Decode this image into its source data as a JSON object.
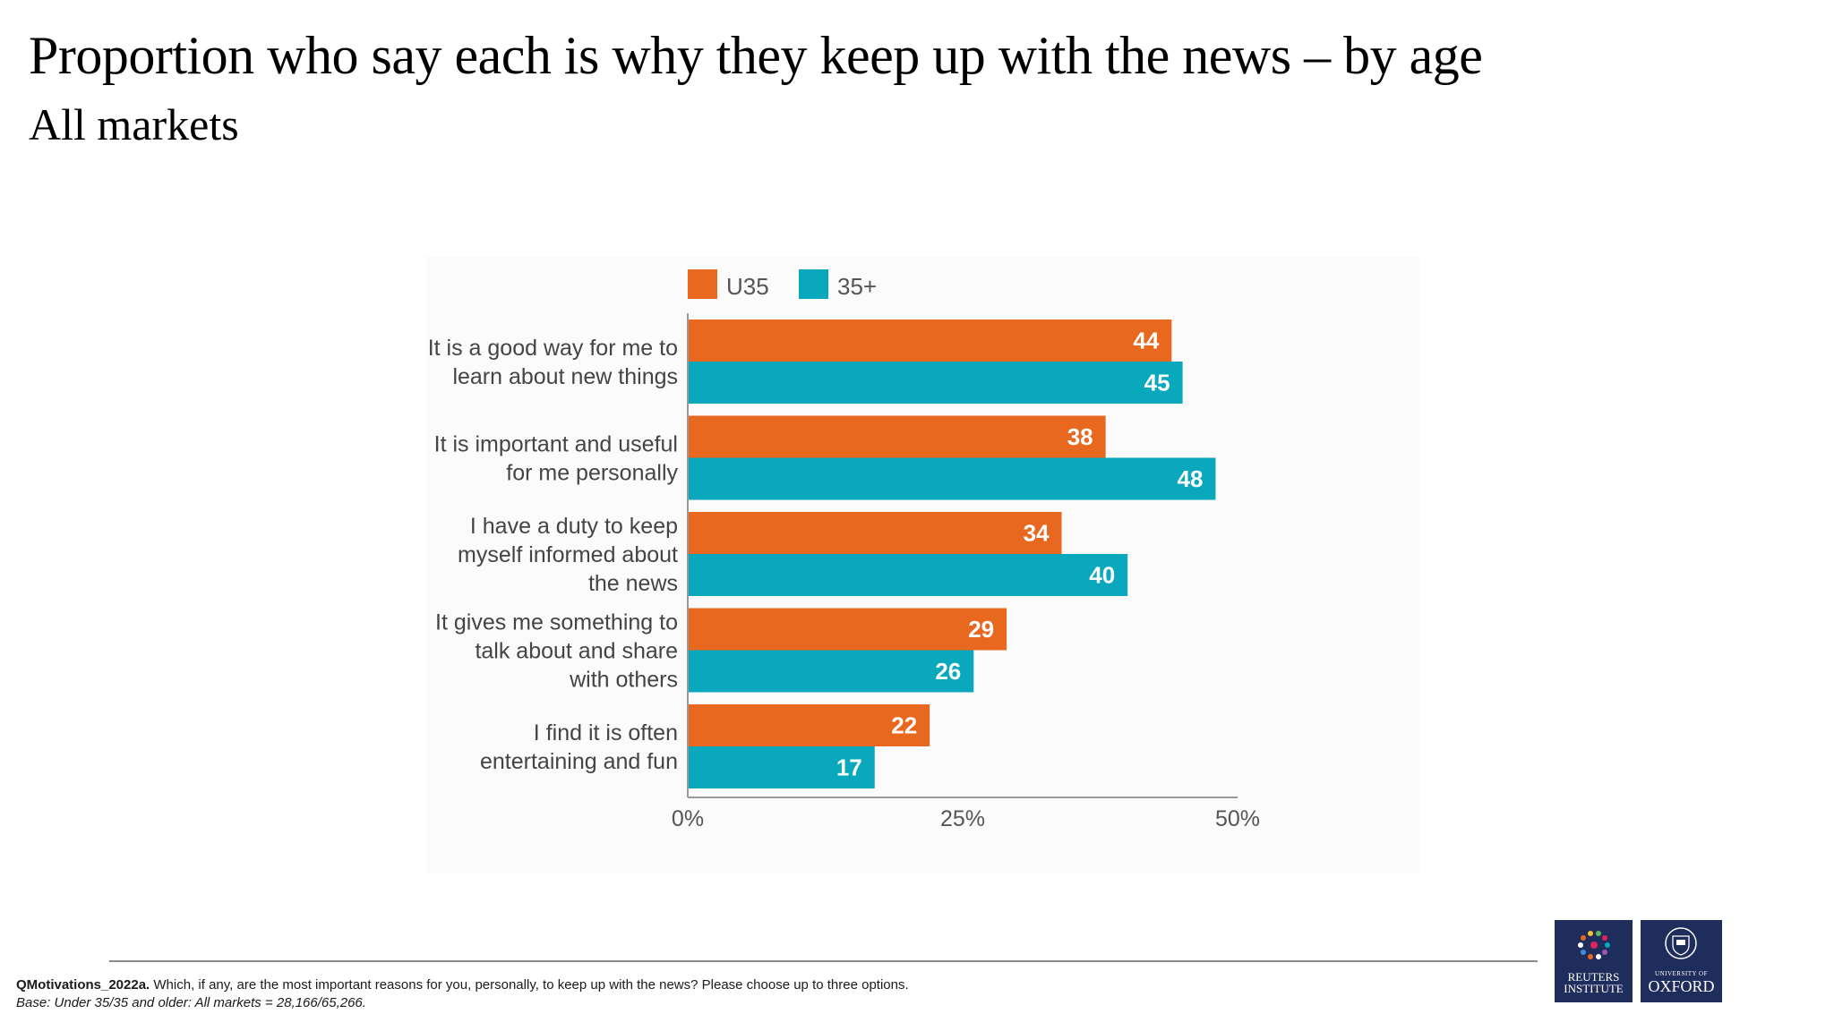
{
  "header": {
    "title": "Proportion who say each is why they keep up with the news – by age",
    "subtitle": "All markets"
  },
  "chart_data": {
    "type": "bar",
    "orientation": "horizontal",
    "categories": [
      [
        "It is a good way for me to",
        "learn about new things"
      ],
      [
        "It is important and useful",
        "for me personally"
      ],
      [
        "I have a duty to keep",
        "myself informed about",
        "the news"
      ],
      [
        "It gives me something to",
        "talk about and share",
        "with others"
      ],
      [
        "I find it is often",
        "entertaining and fun"
      ]
    ],
    "series": [
      {
        "name": "U35",
        "color": "#e8681f",
        "values": [
          44,
          38,
          34,
          29,
          22
        ]
      },
      {
        "name": "35+",
        "color": "#0aa8bc",
        "values": [
          45,
          48,
          40,
          26,
          17
        ]
      }
    ],
    "xlim": [
      0,
      50
    ],
    "xticks": [
      "0%",
      "25%",
      "50%"
    ],
    "legend_position": "top-left",
    "grid": false
  },
  "footer": {
    "question_code": "QMotivations_2022a.",
    "question_text": " Which, if any, are the most important reasons for you, personally, to keep up with the news? Please choose up to three options.",
    "base": "Base: Under 35/35 and older: All markets = 28,166/65,266."
  },
  "logos": {
    "reuters": [
      "REUTERS",
      "INSTITUTE"
    ],
    "oxford_small": "UNIVERSITY OF",
    "oxford": "OXFORD"
  }
}
